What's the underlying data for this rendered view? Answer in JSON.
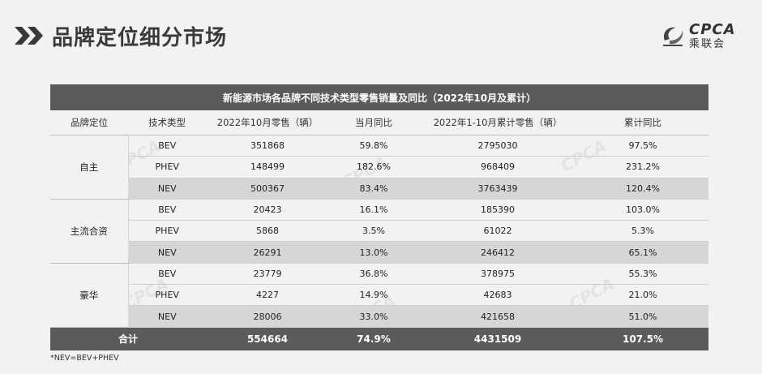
{
  "header": {
    "title": "品牌定位细分市场",
    "logo_text": "CPCA",
    "logo_cn": "乘联会"
  },
  "table": {
    "caption": "新能源市场各品牌不同技术类型零售销量及同比（2022年10月及累计）",
    "columns": [
      "品牌定位",
      "技术类型",
      "2022年10月零售（辆）",
      "当月同比",
      "2022年1-10月累计零售（辆）",
      "累计同比"
    ],
    "groups": [
      {
        "name": "自主",
        "rows": [
          {
            "type": "BEV",
            "oct": "351868",
            "oct_yoy": "59.8%",
            "ytd": "2795030",
            "ytd_yoy": "97.5%"
          },
          {
            "type": "PHEV",
            "oct": "148499",
            "oct_yoy": "182.6%",
            "ytd": "968409",
            "ytd_yoy": "231.2%"
          },
          {
            "type": "NEV",
            "oct": "500367",
            "oct_yoy": "83.4%",
            "ytd": "3763439",
            "ytd_yoy": "120.4%"
          }
        ]
      },
      {
        "name": "主流合资",
        "rows": [
          {
            "type": "BEV",
            "oct": "20423",
            "oct_yoy": "16.1%",
            "ytd": "185390",
            "ytd_yoy": "103.0%"
          },
          {
            "type": "PHEV",
            "oct": "5868",
            "oct_yoy": "3.5%",
            "ytd": "61022",
            "ytd_yoy": "5.3%"
          },
          {
            "type": "NEV",
            "oct": "26291",
            "oct_yoy": "13.0%",
            "ytd": "246412",
            "ytd_yoy": "65.1%"
          }
        ]
      },
      {
        "name": "豪华",
        "rows": [
          {
            "type": "BEV",
            "oct": "23779",
            "oct_yoy": "36.8%",
            "ytd": "378975",
            "ytd_yoy": "55.3%"
          },
          {
            "type": "PHEV",
            "oct": "4227",
            "oct_yoy": "14.9%",
            "ytd": "42683",
            "ytd_yoy": "21.0%"
          },
          {
            "type": "NEV",
            "oct": "28006",
            "oct_yoy": "33.0%",
            "ytd": "421658",
            "ytd_yoy": "51.0%"
          }
        ]
      }
    ],
    "total": {
      "label": "合计",
      "oct": "554664",
      "oct_yoy": "74.9%",
      "ytd": "4431509",
      "ytd_yoy": "107.5%"
    }
  },
  "footnote": "*NEV=BEV+PHEV",
  "colors": {
    "band": "#5b5b5b",
    "nev_row": "#d6d6d6",
    "background": "#f2f2f2"
  }
}
